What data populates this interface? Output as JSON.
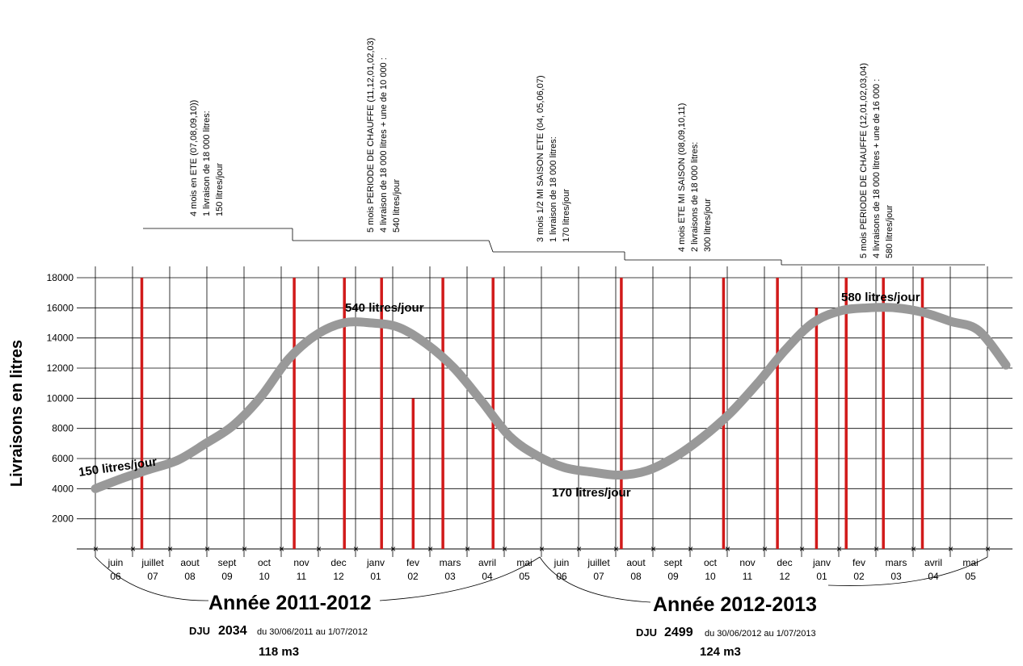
{
  "chart_data": {
    "type": "line",
    "ylabel": "Livraisons en litres",
    "ylim": [
      0,
      18000
    ],
    "yticks": [
      2000,
      4000,
      6000,
      8000,
      10000,
      12000,
      14000,
      16000,
      18000
    ],
    "grid": true,
    "months": [
      {
        "name": "juin",
        "num": "06"
      },
      {
        "name": "juillet",
        "num": "07"
      },
      {
        "name": "aout",
        "num": "08"
      },
      {
        "name": "sept",
        "num": "09"
      },
      {
        "name": "oct",
        "num": "10"
      },
      {
        "name": "nov",
        "num": "11"
      },
      {
        "name": "dec",
        "num": "12"
      },
      {
        "name": "janv",
        "num": "01"
      },
      {
        "name": "fev",
        "num": "02"
      },
      {
        "name": "mars",
        "num": "03"
      },
      {
        "name": "avril",
        "num": "04"
      },
      {
        "name": "mai",
        "num": "05"
      },
      {
        "name": "juin",
        "num": "06"
      },
      {
        "name": "juillet",
        "num": "07"
      },
      {
        "name": "aout",
        "num": "08"
      },
      {
        "name": "sept",
        "num": "09"
      },
      {
        "name": "oct",
        "num": "10"
      },
      {
        "name": "nov",
        "num": "11"
      },
      {
        "name": "dec",
        "num": "12"
      },
      {
        "name": "janv",
        "num": "01"
      },
      {
        "name": "fev",
        "num": "02"
      },
      {
        "name": "mars",
        "num": "03"
      },
      {
        "name": "avril",
        "num": "04"
      },
      {
        "name": "mai",
        "num": "05"
      }
    ],
    "curve": {
      "color": "#999999",
      "points": [
        [
          0,
          4000
        ],
        [
          1,
          4700
        ],
        [
          2,
          5300
        ],
        [
          3,
          5900
        ],
        [
          4,
          7000
        ],
        [
          5,
          8200
        ],
        [
          6,
          10100
        ],
        [
          7,
          12600
        ],
        [
          8,
          14200
        ],
        [
          9,
          15000
        ],
        [
          10,
          15000
        ],
        [
          11,
          14700
        ],
        [
          12,
          13600
        ],
        [
          13,
          12000
        ],
        [
          14,
          9800
        ],
        [
          15,
          7500
        ],
        [
          16,
          6200
        ],
        [
          17,
          5400
        ],
        [
          18,
          5100
        ],
        [
          19,
          4900
        ],
        [
          20,
          5200
        ],
        [
          21,
          6100
        ],
        [
          22,
          7400
        ],
        [
          23,
          9000
        ],
        [
          24,
          11000
        ],
        [
          25,
          13200
        ],
        [
          26,
          15000
        ],
        [
          27,
          15800
        ],
        [
          28,
          16000
        ],
        [
          29,
          16000
        ],
        [
          30,
          15700
        ],
        [
          31,
          15100
        ],
        [
          32,
          14500
        ],
        [
          33,
          12200
        ]
      ]
    },
    "deliveries": {
      "color": "#d11a1a",
      "bars": [
        {
          "x": 1.25,
          "value": 18000
        },
        {
          "x": 5.35,
          "value": 18000
        },
        {
          "x": 6.7,
          "value": 18000
        },
        {
          "x": 7.7,
          "value": 18000
        },
        {
          "x": 8.55,
          "value": 10000
        },
        {
          "x": 9.35,
          "value": 18000
        },
        {
          "x": 10.7,
          "value": 18000
        },
        {
          "x": 14.15,
          "value": 18000
        },
        {
          "x": 16.9,
          "value": 18000
        },
        {
          "x": 18.35,
          "value": 18000
        },
        {
          "x": 19.4,
          "value": 16000
        },
        {
          "x": 20.2,
          "value": 18000
        },
        {
          "x": 21.2,
          "value": 18000
        },
        {
          "x": 22.25,
          "value": 18000
        }
      ]
    },
    "curve_labels": [
      {
        "text": "150 litres/jour",
        "x": 0.0,
        "y": 5000
      },
      {
        "text": "540 litres/jour",
        "x": 9.8,
        "y": 16000
      },
      {
        "text": "170 litres/jour",
        "x": 19.3,
        "y": 3500
      },
      {
        "text": "580 litres/jour",
        "x": 28.0,
        "y": 16400
      }
    ],
    "periods": [
      {
        "lines": [
          "4 mois en ETE  (07,08,09,10))",
          "1 livraison de 18 000 litres:",
          "150 litres/jour"
        ]
      },
      {
        "lines": [
          "5 mois PERIODE DE CHAUFFE  (11,12,01,02,03)",
          "4 livraison de 18 000 litres + une de 10 000 :",
          "540 litres/jour"
        ]
      },
      {
        "lines": [
          "3 mois 1/2 MI SAISON ETE  (04, 05,06,07)",
          "1 livraison de 18 000 litres:",
          "170 litres/jour"
        ]
      },
      {
        "lines": [
          "4 mois ETE  MI SAISON  (08,09,10,11)",
          "2 livraisons de 18 000 litres:",
          "300 litres/jour"
        ]
      },
      {
        "lines": [
          "5 mois PERIODE DE CHAUFFE  (12,01,02,03,04)",
          "4 livraisons de 18 000 litres + une de 16 000 :",
          "580 litres/jour"
        ]
      }
    ],
    "years": [
      {
        "title": "Année 2011-2012",
        "dju_label": "DJU",
        "dju_value": "2034",
        "dju_range": "du 30/06/2011 au 1/07/2012",
        "volume": "118 m3"
      },
      {
        "title": "Année 2012-2013",
        "dju_label": "DJU",
        "dju_value": "2499",
        "dju_range": "du 30/06/2012 au 1/07/2013",
        "volume": "124 m3"
      }
    ]
  }
}
